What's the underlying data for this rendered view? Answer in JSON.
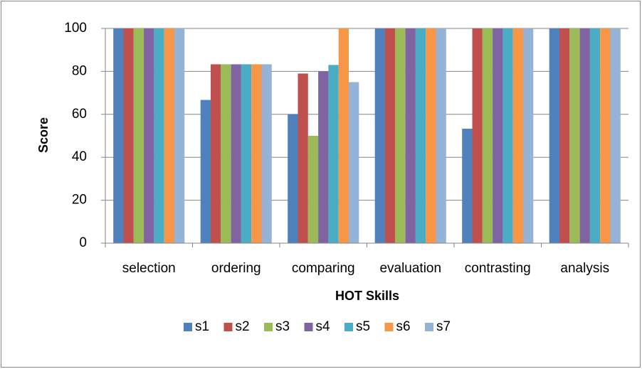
{
  "chart_data": {
    "type": "bar",
    "xlabel": "HOT Skills",
    "ylabel": "Score",
    "categories": [
      "selection",
      "ordering",
      "comparing",
      "evaluation",
      "contrasting",
      "analysis"
    ],
    "series": [
      {
        "name": "s1",
        "color": "#4f81bd",
        "values": [
          100,
          66.7,
          60,
          100,
          53.3,
          100
        ]
      },
      {
        "name": "s2",
        "color": "#c0504d",
        "values": [
          100,
          83.3,
          79,
          100,
          100,
          100
        ]
      },
      {
        "name": "s3",
        "color": "#9bbb59",
        "values": [
          100,
          83.3,
          50,
          100,
          100,
          100
        ]
      },
      {
        "name": "s4",
        "color": "#8064a2",
        "values": [
          100,
          83.3,
          80,
          100,
          100,
          100
        ]
      },
      {
        "name": "s5",
        "color": "#4bacc6",
        "values": [
          100,
          83.3,
          83,
          100,
          100,
          100
        ]
      },
      {
        "name": "s6",
        "color": "#f79646",
        "values": [
          100,
          83.3,
          100,
          100,
          100,
          100
        ]
      },
      {
        "name": "s7",
        "color": "#95b3d7",
        "values": [
          100,
          83.3,
          75,
          100,
          100,
          100
        ]
      }
    ],
    "ylim": [
      0,
      100
    ],
    "yticks": [
      0,
      20,
      40,
      60,
      80,
      100
    ],
    "grid": true,
    "legend": "bottom"
  }
}
